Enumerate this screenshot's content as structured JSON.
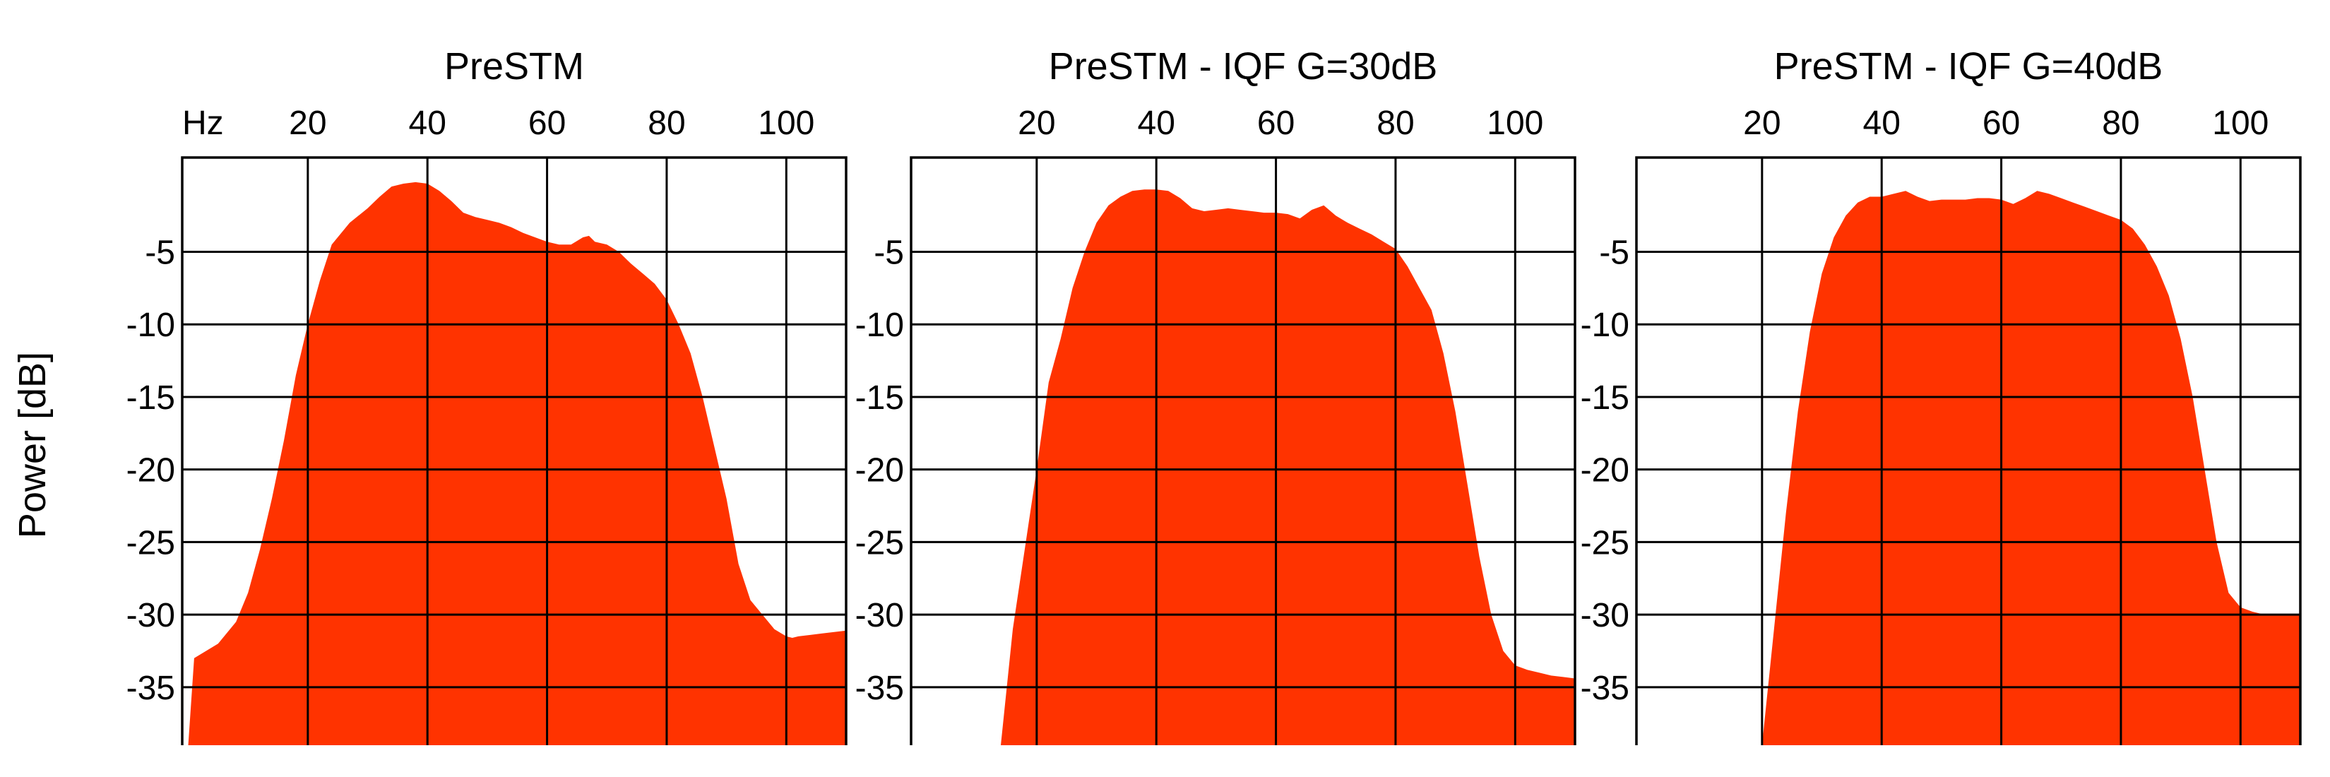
{
  "figure": {
    "ylabel": "Power [dB]",
    "xunit_label": "Hz",
    "fill_color": "#FF3300",
    "grid_color": "#000000"
  },
  "chart_data": [
    {
      "type": "area",
      "title": "PreSTM",
      "xlabel": "Hz",
      "ylabel": "Power [dB]",
      "xlim": [
        -1,
        110
      ],
      "ylim": [
        -39,
        1.5
      ],
      "grid": true,
      "xticks": [
        20,
        40,
        60,
        80,
        100
      ],
      "yticks": [
        -5,
        -10,
        -15,
        -20,
        -25,
        -30,
        -35
      ],
      "x": [
        0,
        1,
        5,
        8,
        10,
        12,
        14,
        16,
        18,
        20,
        22,
        24,
        27,
        30,
        32,
        34,
        36,
        38,
        40,
        42,
        44,
        46,
        48,
        50,
        52,
        54,
        56,
        58,
        60,
        62,
        64,
        66,
        67,
        68,
        70,
        72,
        74,
        76,
        78,
        80,
        82,
        84,
        86,
        88,
        90,
        92,
        94,
        96,
        98,
        100,
        101,
        102,
        104,
        106,
        108,
        110
      ],
      "y": [
        -39,
        -33,
        -32,
        -30.5,
        -28.5,
        -25.5,
        -22,
        -18,
        -13.5,
        -10,
        -7,
        -4.5,
        -3,
        -2,
        -1.2,
        -0.5,
        -0.3,
        -0.2,
        -0.3,
        -0.8,
        -1.5,
        -2.3,
        -2.6,
        -2.8,
        -3,
        -3.3,
        -3.7,
        -4,
        -4.3,
        -4.5,
        -4.5,
        -4,
        -3.9,
        -4.3,
        -4.5,
        -5,
        -5.8,
        -6.5,
        -7.2,
        -8.3,
        -10,
        -12,
        -15,
        -18.5,
        -22,
        -26.5,
        -29,
        -30,
        -31,
        -31.5,
        -31.6,
        -31.5,
        -31.4,
        -31.3,
        -31.2,
        -31.1
      ]
    },
    {
      "type": "area",
      "title": "PreSTM - IQF G=30dB",
      "xlabel": "Hz",
      "ylabel": "Power [dB]",
      "xlim": [
        -1,
        110
      ],
      "ylim": [
        -39,
        1.5
      ],
      "grid": true,
      "xticks": [
        20,
        40,
        60,
        80,
        100
      ],
      "yticks": [
        -5,
        -10,
        -15,
        -20,
        -25,
        -30,
        -35
      ],
      "x": [
        14,
        16,
        18,
        20,
        22,
        24,
        26,
        28,
        30,
        32,
        34,
        36,
        38,
        40,
        42,
        44,
        46,
        48,
        50,
        52,
        54,
        56,
        58,
        60,
        62,
        64,
        66,
        68,
        70,
        72,
        74,
        76,
        78,
        80,
        82,
        84,
        86,
        88,
        90,
        92,
        94,
        96,
        98,
        100,
        102,
        104,
        106,
        108,
        110
      ],
      "y": [
        -39,
        -31,
        -25.5,
        -20,
        -14,
        -11,
        -7.5,
        -5,
        -3,
        -1.8,
        -1.2,
        -0.8,
        -0.7,
        -0.7,
        -0.8,
        -1.3,
        -2,
        -2.2,
        -2.1,
        -2,
        -2.1,
        -2.2,
        -2.3,
        -2.3,
        -2.4,
        -2.7,
        -2.1,
        -1.8,
        -2.5,
        -3,
        -3.4,
        -3.8,
        -4.3,
        -4.8,
        -6,
        -7.5,
        -9,
        -12,
        -16,
        -21,
        -26,
        -30,
        -32.5,
        -33.5,
        -33.8,
        -34,
        -34.2,
        -34.3,
        -34.4
      ]
    },
    {
      "type": "area",
      "title": "PreSTM - IQF G=40dB",
      "xlabel": "Hz",
      "ylabel": "Power [dB]",
      "xlim": [
        -1,
        110
      ],
      "ylim": [
        -39,
        1.5
      ],
      "grid": true,
      "xticks": [
        20,
        40,
        60,
        80,
        100
      ],
      "yticks": [
        -5,
        -10,
        -15,
        -20,
        -25,
        -30,
        -35
      ],
      "x": [
        20,
        22,
        24,
        26,
        28,
        30,
        32,
        34,
        36,
        38,
        40,
        42,
        44,
        46,
        48,
        50,
        52,
        54,
        56,
        58,
        60,
        62,
        64,
        66,
        68,
        70,
        72,
        74,
        76,
        78,
        80,
        82,
        84,
        86,
        88,
        90,
        92,
        94,
        96,
        98,
        100,
        102,
        104,
        106,
        108,
        110
      ],
      "y": [
        -39,
        -31,
        -23,
        -16,
        -10.5,
        -6.5,
        -4,
        -2.5,
        -1.6,
        -1.2,
        -1.2,
        -1.0,
        -0.8,
        -1.2,
        -1.5,
        -1.4,
        -1.4,
        -1.4,
        -1.3,
        -1.3,
        -1.4,
        -1.7,
        -1.3,
        -0.8,
        -1.0,
        -1.3,
        -1.6,
        -1.9,
        -2.2,
        -2.5,
        -2.8,
        -3.4,
        -4.5,
        -6,
        -8,
        -11,
        -15,
        -20,
        -25,
        -28.5,
        -29.5,
        -29.8,
        -30,
        -30,
        -30,
        -30
      ]
    }
  ]
}
